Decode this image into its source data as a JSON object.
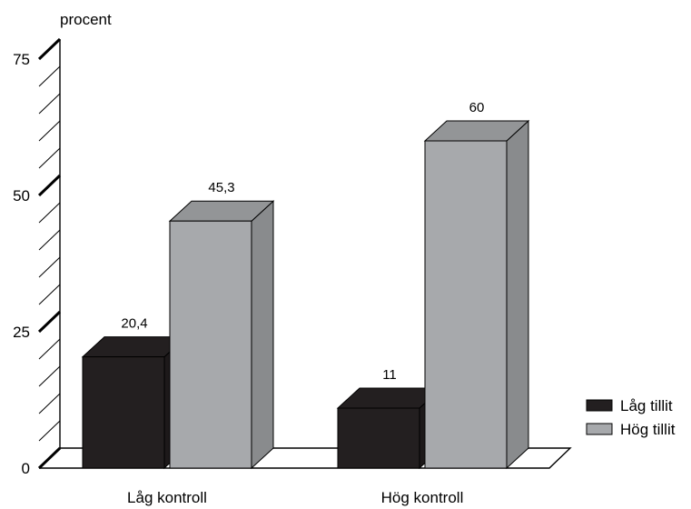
{
  "chart_data": {
    "type": "bar",
    "title": "",
    "ylabel": "procent",
    "xlabel": "",
    "ylim": [
      0,
      75
    ],
    "yticks": [
      {
        "value": 0,
        "label": "0"
      },
      {
        "value": 25,
        "label": "25"
      },
      {
        "value": 50,
        "label": "50"
      },
      {
        "value": 75,
        "label": "75"
      }
    ],
    "minor_tick_step": 5,
    "categories": [
      "Låg kontroll",
      "Hög kontroll"
    ],
    "series": [
      {
        "name": "Låg tillit",
        "values": [
          20.4,
          11
        ],
        "value_labels": [
          "20,4",
          "11"
        ],
        "color": "#231f20"
      },
      {
        "name": "Hög tillit",
        "values": [
          45.3,
          60
        ],
        "value_labels": [
          "45,3",
          "60"
        ],
        "color": "#a7a9ac"
      }
    ],
    "legend_position": "bottom-right",
    "three_d": true,
    "grid": false
  }
}
